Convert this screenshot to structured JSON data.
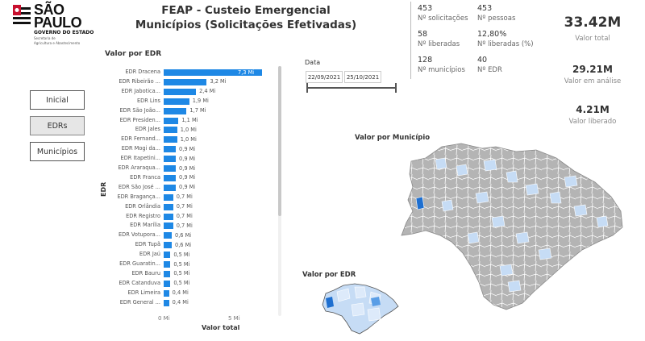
{
  "logo": {
    "line1": "SÃO",
    "line2": "PAULO",
    "gov": "GOVERNO DO ESTADO",
    "sec1": "Secretaria de",
    "sec2": "Agricultura e Abastecimento"
  },
  "header": {
    "line1": "FEAP - Custeio Emergencial",
    "line2": "Municípios (Solicitações Efetivadas)"
  },
  "nav": {
    "inicial": "Inicial",
    "edrs": "EDRs",
    "municipios": "Municípios"
  },
  "bar_chart_title": "Valor por EDR",
  "date": {
    "label": "Data",
    "start": "22/09/2021",
    "end": "25/10/2021"
  },
  "stats": {
    "solicitacoes_value": "453",
    "solicitacoes_label": "Nº solicitações",
    "pessoas_value": "453",
    "pessoas_label": "Nº pessoas",
    "liberadas_value": "58",
    "liberadas_label": "Nº liberadas",
    "pct_value": "12,80%",
    "pct_label": "Nº liberadas (%)",
    "municipios_value": "128",
    "municipios_label": "Nº municípios",
    "edr_value": "40",
    "edr_label": "Nº EDR"
  },
  "kpis": {
    "total_value": "33.42M",
    "total_label": "Valor total",
    "analise_value": "29.21M",
    "analise_label": "Valor em análise",
    "liberado_value": "4.21M",
    "liberado_label": "Valor liberado"
  },
  "map_municipio_title": "Valor por Município",
  "map_edr_title": "Valor por EDR",
  "colors": {
    "bar": "#1e88e5",
    "map_gray": "#b4b4b4",
    "map_light": "#c6dcf5",
    "map_dark": "#1e6fd0"
  },
  "chart_data": {
    "type": "bar",
    "orientation": "horizontal",
    "ylabel": "EDR",
    "xlabel": "Valor total",
    "xlim": [
      0,
      7.3
    ],
    "xticks": [
      "0 Mi",
      "5 Mi"
    ],
    "categories": [
      "EDR Dracena",
      "EDR Ribeirão ...",
      "EDR Jabotica...",
      "EDR Lins",
      "EDR São João...",
      "EDR Presiden...",
      "EDR Jales",
      "EDR Fernand...",
      "EDR Mogi da...",
      "EDR Itapetini...",
      "EDR Araraqua...",
      "EDR Franca",
      "EDR São José ...",
      "EDR Bragança...",
      "EDR Orlândia",
      "EDR Registro",
      "EDR Marília",
      "EDR Votupora...",
      "EDR Tupã",
      "EDR Jaú",
      "EDR Guaratin...",
      "EDR Bauru",
      "EDR Catanduva",
      "EDR Limeira",
      "EDR General ..."
    ],
    "values": [
      7.3,
      3.2,
      2.4,
      1.9,
      1.7,
      1.1,
      1.0,
      1.0,
      0.9,
      0.9,
      0.9,
      0.9,
      0.9,
      0.7,
      0.7,
      0.7,
      0.7,
      0.6,
      0.6,
      0.5,
      0.5,
      0.5,
      0.5,
      0.4,
      0.4
    ],
    "labels": [
      "7,3 Mi",
      "3,2 Mi",
      "2,4 Mi",
      "1,9 Mi",
      "1,7 Mi",
      "1,1 Mi",
      "1,0 Mi",
      "1,0 Mi",
      "0,9 Mi",
      "0,9 Mi",
      "0,9 Mi",
      "0,9 Mi",
      "0,9 Mi",
      "0,7 Mi",
      "0,7 Mi",
      "0,7 Mi",
      "0,7 Mi",
      "0,6 Mi",
      "0,6 Mi",
      "0,5 Mi",
      "0,5 Mi",
      "0,5 Mi",
      "0,5 Mi",
      "0,4 Mi",
      "0,4 Mi"
    ]
  }
}
